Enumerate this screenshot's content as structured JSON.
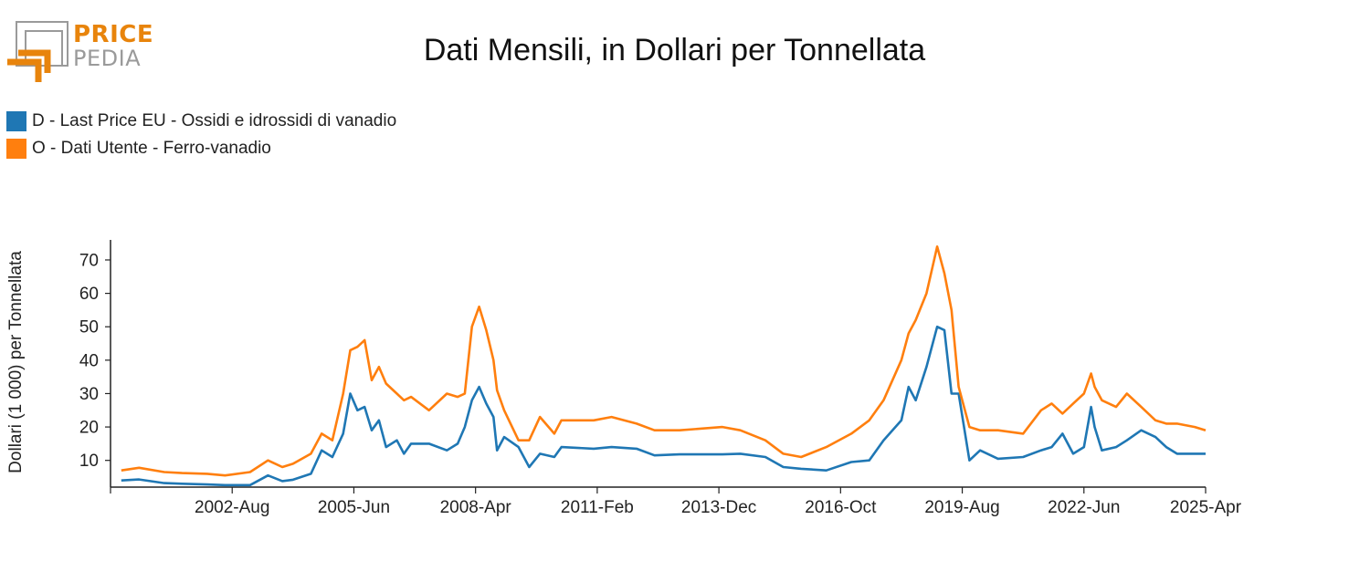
{
  "logo": {
    "word_top": "PRICE",
    "word_bottom": "PEDIA",
    "colors": {
      "orange": "#e8840c",
      "gray": "#9a9a9a"
    }
  },
  "chart_data": {
    "type": "line",
    "title": "Dati Mensili, in Dollari per Tonnellata",
    "ylabel": "Dollari (1 000) per Tonnellata",
    "xlabel": "",
    "ylim": [
      2,
      76
    ],
    "yticks": [
      10,
      20,
      30,
      40,
      50,
      60,
      70
    ],
    "xticks": [
      "2002-Aug",
      "2005-Jun",
      "2008-Apr",
      "2011-Feb",
      "2013-Dec",
      "2016-Oct",
      "2019-Aug",
      "2022-Jun",
      "2025-Apr"
    ],
    "xrange": [
      "1999-Oct",
      "2025-Apr"
    ],
    "grid": false,
    "legend_position": "top-left",
    "series": [
      {
        "name": "D - Last Price EU - Ossidi e idrossidi di vanadio",
        "color": "#1f77b4",
        "points": [
          [
            "2000-Jan",
            4
          ],
          [
            "2000-Jun",
            4.3
          ],
          [
            "2001-Jan",
            3.2
          ],
          [
            "2001-Jun",
            3.0
          ],
          [
            "2002-Jan",
            2.8
          ],
          [
            "2002-Jun",
            2.6
          ],
          [
            "2003-Jan",
            2.6
          ],
          [
            "2003-Jun",
            5.5
          ],
          [
            "2003-Oct",
            3.8
          ],
          [
            "2004-Jan",
            4.2
          ],
          [
            "2004-Jun",
            6
          ],
          [
            "2004-Sep",
            13
          ],
          [
            "2004-Dec",
            11
          ],
          [
            "2005-Mar",
            18
          ],
          [
            "2005-May",
            30
          ],
          [
            "2005-Jul",
            25
          ],
          [
            "2005-Sep",
            26
          ],
          [
            "2005-Nov",
            19
          ],
          [
            "2006-Jan",
            22
          ],
          [
            "2006-Mar",
            14
          ],
          [
            "2006-Jun",
            16
          ],
          [
            "2006-Aug",
            12
          ],
          [
            "2006-Oct",
            15
          ],
          [
            "2007-Mar",
            15
          ],
          [
            "2007-Aug",
            13
          ],
          [
            "2007-Nov",
            15
          ],
          [
            "2008-Jan",
            20
          ],
          [
            "2008-Mar",
            28
          ],
          [
            "2008-May",
            32
          ],
          [
            "2008-Jul",
            27
          ],
          [
            "2008-Sep",
            23
          ],
          [
            "2008-Oct",
            13
          ],
          [
            "2008-Dec",
            17
          ],
          [
            "2009-Apr",
            14
          ],
          [
            "2009-Jul",
            8
          ],
          [
            "2009-Oct",
            12
          ],
          [
            "2010-Feb",
            11
          ],
          [
            "2010-Apr",
            14
          ],
          [
            "2011-Jan",
            13.5
          ],
          [
            "2011-Jun",
            14
          ],
          [
            "2012-Jan",
            13.5
          ],
          [
            "2012-Jun",
            11.5
          ],
          [
            "2013-Jan",
            11.8
          ],
          [
            "2014-Jan",
            11.8
          ],
          [
            "2014-Jun",
            12
          ],
          [
            "2015-Jan",
            11
          ],
          [
            "2015-Jun",
            8
          ],
          [
            "2015-Nov",
            7.5
          ],
          [
            "2016-Jun",
            7
          ],
          [
            "2017-Jan",
            9.5
          ],
          [
            "2017-Jun",
            10
          ],
          [
            "2017-Oct",
            16
          ],
          [
            "2018-Mar",
            22
          ],
          [
            "2018-May",
            32
          ],
          [
            "2018-Jul",
            28
          ],
          [
            "2018-Oct",
            38
          ],
          [
            "2019-Jan",
            50
          ],
          [
            "2019-Mar",
            49
          ],
          [
            "2019-May",
            30
          ],
          [
            "2019-Jul",
            30
          ],
          [
            "2019-Oct",
            10
          ],
          [
            "2020-Jan",
            13
          ],
          [
            "2020-Jun",
            10.5
          ],
          [
            "2021-Jan",
            11
          ],
          [
            "2021-Jun",
            13
          ],
          [
            "2021-Sep",
            14
          ],
          [
            "2021-Dec",
            18
          ],
          [
            "2022-Mar",
            12
          ],
          [
            "2022-Jun",
            14
          ],
          [
            "2022-Aug",
            26
          ],
          [
            "2022-Sep",
            20
          ],
          [
            "2022-Nov",
            13
          ],
          [
            "2023-Mar",
            14
          ],
          [
            "2023-Jun",
            16
          ],
          [
            "2023-Oct",
            19
          ],
          [
            "2024-Feb",
            17
          ],
          [
            "2024-May",
            14
          ],
          [
            "2024-Aug",
            12
          ],
          [
            "2025-Jan",
            12
          ],
          [
            "2025-Apr",
            12
          ]
        ]
      },
      {
        "name": "O - Dati Utente - Ferro-vanadio",
        "color": "#ff7f0e",
        "points": [
          [
            "2000-Jan",
            7
          ],
          [
            "2000-Jun",
            7.8
          ],
          [
            "2001-Jan",
            6.5
          ],
          [
            "2001-Jun",
            6.2
          ],
          [
            "2002-Jan",
            6
          ],
          [
            "2002-Jun",
            5.5
          ],
          [
            "2003-Jan",
            6.5
          ],
          [
            "2003-Jun",
            10
          ],
          [
            "2003-Oct",
            8
          ],
          [
            "2004-Jan",
            9
          ],
          [
            "2004-Jun",
            12
          ],
          [
            "2004-Sep",
            18
          ],
          [
            "2004-Dec",
            16
          ],
          [
            "2005-Mar",
            30
          ],
          [
            "2005-May",
            43
          ],
          [
            "2005-Jul",
            44
          ],
          [
            "2005-Sep",
            46
          ],
          [
            "2005-Nov",
            34
          ],
          [
            "2006-Jan",
            38
          ],
          [
            "2006-Mar",
            33
          ],
          [
            "2006-Jun",
            30
          ],
          [
            "2006-Aug",
            28
          ],
          [
            "2006-Oct",
            29
          ],
          [
            "2007-Mar",
            25
          ],
          [
            "2007-Aug",
            30
          ],
          [
            "2007-Nov",
            29
          ],
          [
            "2008-Jan",
            30
          ],
          [
            "2008-Mar",
            50
          ],
          [
            "2008-May",
            56
          ],
          [
            "2008-Jul",
            49
          ],
          [
            "2008-Sep",
            40
          ],
          [
            "2008-Oct",
            31
          ],
          [
            "2008-Dec",
            25
          ],
          [
            "2009-Apr",
            16
          ],
          [
            "2009-Jul",
            16
          ],
          [
            "2009-Oct",
            23
          ],
          [
            "2010-Feb",
            18
          ],
          [
            "2010-Apr",
            22
          ],
          [
            "2011-Jan",
            22
          ],
          [
            "2011-Jun",
            23
          ],
          [
            "2012-Jan",
            21
          ],
          [
            "2012-Jun",
            19
          ],
          [
            "2013-Jan",
            19
          ],
          [
            "2014-Jan",
            20
          ],
          [
            "2014-Jun",
            19
          ],
          [
            "2015-Jan",
            16
          ],
          [
            "2015-Jun",
            12
          ],
          [
            "2015-Nov",
            11
          ],
          [
            "2016-Jun",
            14
          ],
          [
            "2017-Jan",
            18
          ],
          [
            "2017-Jun",
            22
          ],
          [
            "2017-Oct",
            28
          ],
          [
            "2018-Mar",
            40
          ],
          [
            "2018-May",
            48
          ],
          [
            "2018-Jul",
            52
          ],
          [
            "2018-Oct",
            60
          ],
          [
            "2019-Jan",
            74
          ],
          [
            "2019-Mar",
            66
          ],
          [
            "2019-May",
            55
          ],
          [
            "2019-Jul",
            32
          ],
          [
            "2019-Oct",
            20
          ],
          [
            "2020-Jan",
            19
          ],
          [
            "2020-Jun",
            19
          ],
          [
            "2021-Jan",
            18
          ],
          [
            "2021-Jun",
            25
          ],
          [
            "2021-Sep",
            27
          ],
          [
            "2021-Dec",
            24
          ],
          [
            "2022-Mar",
            27
          ],
          [
            "2022-Jun",
            30
          ],
          [
            "2022-Aug",
            36
          ],
          [
            "2022-Sep",
            32
          ],
          [
            "2022-Nov",
            28
          ],
          [
            "2023-Mar",
            26
          ],
          [
            "2023-Jun",
            30
          ],
          [
            "2023-Oct",
            26
          ],
          [
            "2024-Feb",
            22
          ],
          [
            "2024-May",
            21
          ],
          [
            "2024-Aug",
            21
          ],
          [
            "2025-Jan",
            20
          ],
          [
            "2025-Apr",
            19
          ]
        ]
      }
    ]
  }
}
